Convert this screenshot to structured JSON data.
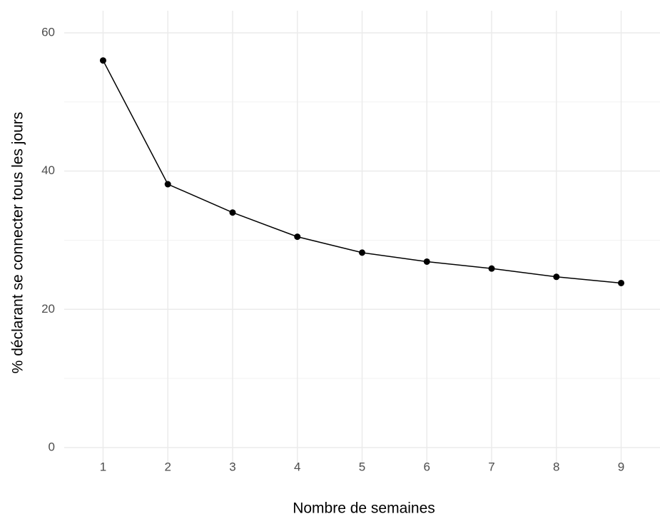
{
  "chart_data": {
    "type": "line",
    "x_label": "Nombre de semaines",
    "y_label": "% déclarant se connecter tous les jours",
    "x": [
      1,
      2,
      3,
      4,
      5,
      6,
      7,
      8,
      9
    ],
    "series": [
      {
        "color": "#000000",
        "values": [
          56,
          38.1,
          34,
          30.5,
          28.2,
          26.9,
          25.9,
          24.7,
          23.8
        ]
      }
    ],
    "xlim": [
      0.4,
      9.6
    ],
    "ylim": [
      -2.9,
      63.2
    ],
    "xticks": [
      1,
      2,
      3,
      4,
      5,
      6,
      7,
      8,
      9
    ],
    "yticks": [
      0,
      20,
      40,
      60
    ],
    "y_minor_grid": [
      10,
      30,
      50
    ],
    "grid": true
  }
}
